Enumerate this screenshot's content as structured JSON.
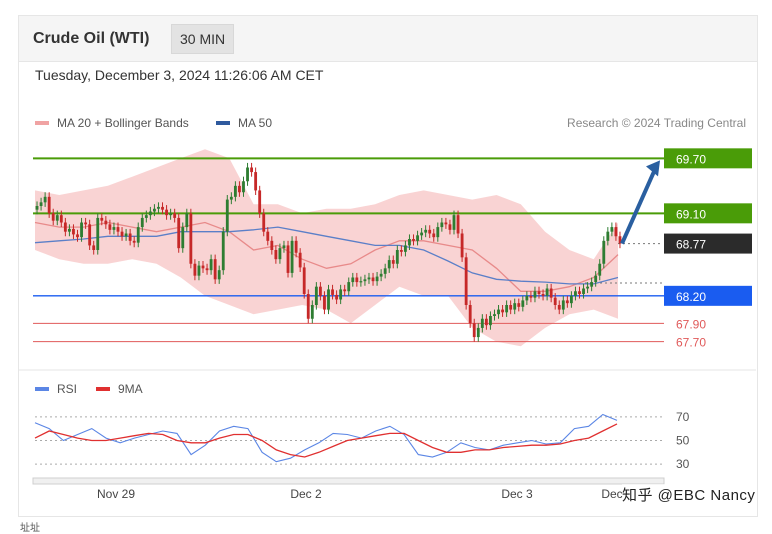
{
  "header": {
    "title": "Crude Oil (WTI)",
    "interval": "30 MIN"
  },
  "datetime": "Tuesday, December 3, 2024 11:26:06 AM CET",
  "legend": {
    "ma20": "MA 20 + Bollinger Bands",
    "ma50": "MA 50",
    "credit": "Research © 2024 Trading Central"
  },
  "rsi_legend": {
    "rsi": "RSI",
    "ma9": "9MA"
  },
  "watermark": "知乎 @EBC Nancy",
  "footnote": "址址",
  "colors": {
    "green": "#4a9c08",
    "blue": "#1a5cf0",
    "red": "#e05a5a",
    "dark": "#2b2b2b",
    "band": "#f7c4c4",
    "ma20": "#e88a8a",
    "ma50": "#5b7fc8",
    "candle_up": "#2e7d32",
    "candle_down": "#c62828",
    "arrow": "#2a5fa0",
    "rsi": "#5b86e5",
    "rsi_ma": "#e03030"
  },
  "chart_data": [
    {
      "type": "candlestick",
      "title": "Crude Oil (WTI)",
      "ylim": [
        67.5,
        69.9
      ],
      "x_tick_labels": [
        "Nov 29",
        "Dec 2",
        "Dec 3",
        "Dec"
      ],
      "levels": [
        {
          "value": 69.7,
          "label": "69.70",
          "style": "resistance",
          "color": "green"
        },
        {
          "value": 69.1,
          "label": "69.10",
          "style": "resistance",
          "color": "green"
        },
        {
          "value": 68.77,
          "label": "68.77",
          "style": "last",
          "color": "dark"
        },
        {
          "value": 68.2,
          "label": "68.20",
          "style": "support",
          "color": "blue"
        },
        {
          "value": 67.9,
          "label": "67.90",
          "style": "support",
          "color": "red"
        },
        {
          "value": 67.7,
          "label": "67.70",
          "style": "support",
          "color": "red"
        }
      ],
      "close": [
        69.18,
        69.22,
        69.28,
        69.1,
        69.02,
        69.08,
        69.0,
        68.9,
        68.93,
        68.87,
        68.84,
        69.0,
        68.98,
        68.75,
        68.7,
        69.05,
        69.02,
        68.98,
        68.92,
        68.95,
        68.9,
        68.85,
        68.88,
        68.8,
        68.78,
        68.95,
        69.05,
        69.08,
        69.12,
        69.15,
        69.17,
        69.14,
        69.08,
        69.1,
        69.05,
        68.72,
        68.95,
        69.1,
        68.55,
        68.42,
        68.53,
        68.5,
        68.48,
        68.6,
        68.38,
        68.48,
        68.9,
        69.25,
        69.28,
        69.4,
        69.33,
        69.45,
        69.6,
        69.55,
        69.35,
        69.1,
        68.9,
        68.8,
        68.7,
        68.6,
        68.72,
        68.75,
        68.45,
        68.8,
        68.67,
        68.51,
        68.22,
        67.95,
        68.1,
        68.3,
        68.2,
        68.05,
        68.27,
        68.21,
        68.16,
        68.27,
        68.25,
        68.35,
        68.4,
        68.35,
        68.36,
        68.38,
        68.4,
        68.36,
        68.41,
        68.44,
        68.5,
        68.59,
        68.55,
        68.7,
        68.68,
        68.75,
        68.82,
        68.8,
        68.86,
        68.89,
        68.92,
        68.88,
        68.84,
        68.95,
        69.0,
        68.98,
        68.92,
        69.08,
        68.88,
        68.62,
        68.1,
        67.9,
        67.75,
        67.85,
        67.95,
        67.88,
        67.98,
        68.0,
        68.05,
        68.02,
        68.1,
        68.05,
        68.12,
        68.08,
        68.15,
        68.2,
        68.18,
        68.25,
        68.22,
        68.2,
        68.28,
        68.18,
        68.1,
        68.05,
        68.15,
        68.12,
        68.2,
        68.25,
        68.22,
        68.28,
        68.3,
        68.35,
        68.42,
        68.55,
        68.8,
        68.9,
        68.95,
        68.85,
        68.77
      ],
      "ma20": [
        69.0,
        68.95,
        68.95,
        69.0,
        68.95,
        68.9,
        68.95,
        69.0,
        68.9,
        68.7,
        68.75,
        68.6,
        68.5,
        68.55,
        68.7,
        68.8,
        68.8,
        68.75,
        68.7,
        68.5,
        68.25,
        68.25,
        68.3,
        68.4,
        68.65
      ],
      "ma50": [
        68.78,
        68.8,
        68.82,
        68.85,
        68.85,
        68.85,
        68.9,
        68.9,
        68.9,
        68.92,
        68.95,
        68.9,
        68.85,
        68.8,
        68.75,
        68.75,
        68.7,
        68.58,
        68.45,
        68.38,
        68.36,
        68.35,
        68.33,
        68.33,
        68.4
      ],
      "bb_upper": [
        69.35,
        69.3,
        69.35,
        69.4,
        69.5,
        69.6,
        69.7,
        69.8,
        69.7,
        69.2,
        69.2,
        69.1,
        69.15,
        69.15,
        69.2,
        69.3,
        69.35,
        69.3,
        69.25,
        69.3,
        69.2,
        68.9,
        68.7,
        68.6,
        69.0
      ],
      "bb_lower": [
        68.7,
        68.6,
        68.55,
        68.55,
        68.6,
        68.55,
        68.4,
        68.2,
        68.1,
        68.0,
        68.05,
        68.1,
        68.05,
        67.9,
        68.1,
        68.3,
        68.2,
        68.2,
        67.85,
        67.7,
        67.65,
        67.85,
        68.0,
        68.05,
        67.95
      ]
    },
    {
      "type": "line",
      "title": "RSI",
      "ylim": [
        25,
        80
      ],
      "y_ticks": [
        70,
        50,
        30
      ],
      "series": [
        {
          "name": "RSI",
          "values": [
            65,
            60,
            50,
            55,
            60,
            52,
            48,
            52,
            55,
            58,
            56,
            38,
            46,
            58,
            62,
            60,
            40,
            32,
            35,
            42,
            48,
            56,
            55,
            52,
            58,
            62,
            55,
            38,
            36,
            40,
            48,
            44,
            42,
            46,
            48,
            50,
            47,
            48,
            60,
            62,
            72,
            67
          ]
        },
        {
          "name": "9MA",
          "values": [
            52,
            58,
            55,
            52,
            50,
            50,
            52,
            54,
            56,
            55,
            50,
            48,
            48,
            52,
            55,
            55,
            50,
            42,
            38,
            36,
            40,
            45,
            50,
            52,
            54,
            56,
            56,
            50,
            44,
            40,
            40,
            42,
            42,
            44,
            45,
            46,
            46,
            47,
            50,
            52,
            58,
            64
          ]
        }
      ]
    }
  ]
}
